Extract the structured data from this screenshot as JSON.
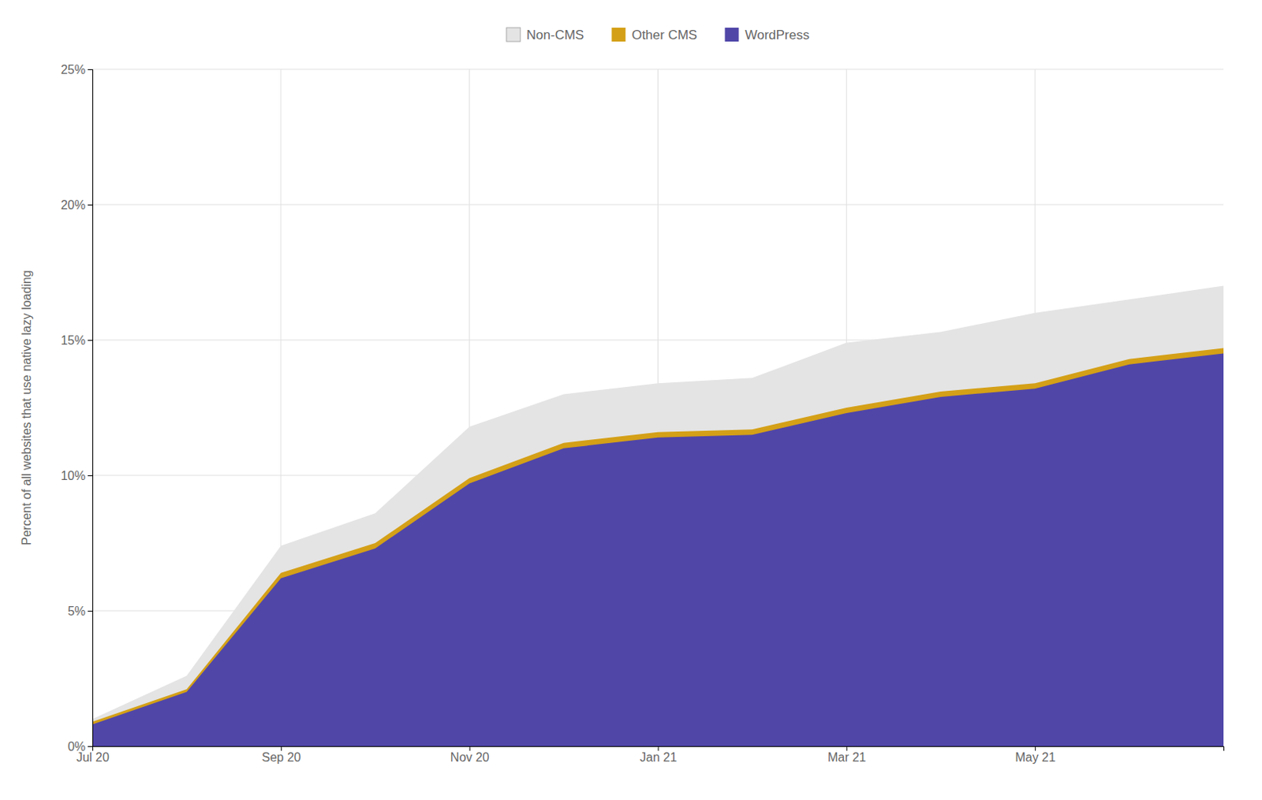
{
  "chart_data": {
    "type": "area",
    "ylabel": "Percent of all websites that use native lazy loading",
    "x": [
      0,
      1,
      2,
      3,
      4,
      5,
      6,
      7,
      8,
      9,
      10,
      11,
      12
    ],
    "xlim": [
      0,
      12
    ],
    "xticks": [
      {
        "value": 0,
        "label": "Jul 20"
      },
      {
        "value": 2,
        "label": "Sep 20"
      },
      {
        "value": 4,
        "label": "Nov 20"
      },
      {
        "value": 6,
        "label": "Jan 21"
      },
      {
        "value": 8,
        "label": "Mar 21"
      },
      {
        "value": 10,
        "label": "May 21"
      }
    ],
    "ylim": [
      0,
      0.25
    ],
    "yticks": [
      {
        "value": 0.0,
        "label": "0%"
      },
      {
        "value": 0.05,
        "label": "5%"
      },
      {
        "value": 0.1,
        "label": "10%"
      },
      {
        "value": 0.15,
        "label": "15%"
      },
      {
        "value": 0.2,
        "label": "20%"
      },
      {
        "value": 0.25,
        "label": "25%"
      }
    ],
    "grid": true,
    "legend": "top",
    "series": [
      {
        "name": "Non-CMS",
        "color": "#e4e4e4",
        "values": [
          0.01,
          0.026,
          0.074,
          0.086,
          0.118,
          0.13,
          0.134,
          0.136,
          0.149,
          0.153,
          0.16,
          0.165,
          0.17
        ]
      },
      {
        "name": "Other CMS",
        "color": "#d4a017",
        "values": [
          0.009,
          0.021,
          0.064,
          0.075,
          0.099,
          0.112,
          0.116,
          0.117,
          0.125,
          0.131,
          0.134,
          0.143,
          0.147
        ]
      },
      {
        "name": "WordPress",
        "color": "#5046a8",
        "values": [
          0.008,
          0.02,
          0.062,
          0.073,
          0.097,
          0.11,
          0.114,
          0.115,
          0.123,
          0.129,
          0.132,
          0.141,
          0.145
        ]
      }
    ]
  }
}
